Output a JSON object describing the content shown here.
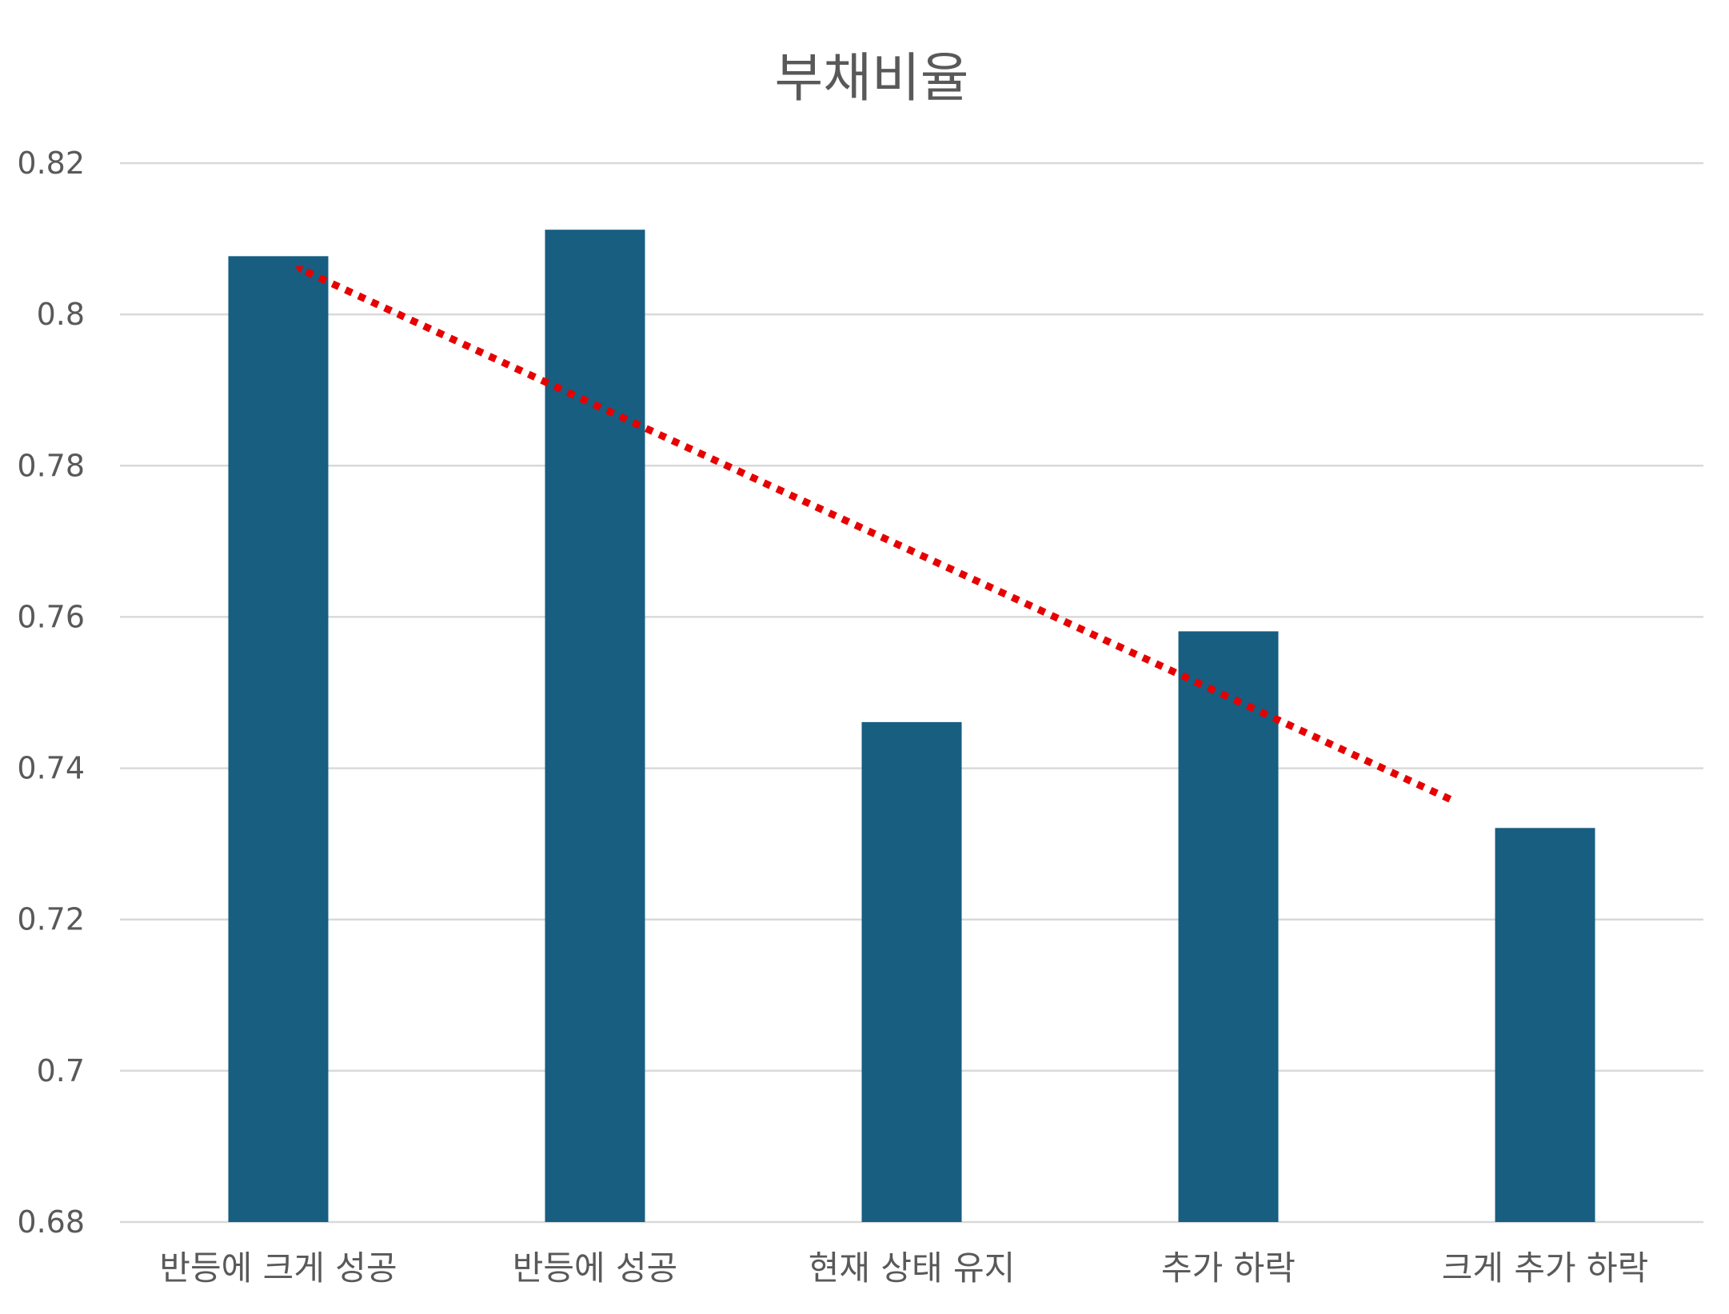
{
  "chart_data": {
    "type": "bar",
    "title": "부채비율",
    "xlabel": "",
    "ylabel": "",
    "categories": [
      "반등에 크게 성공",
      "반등에 성공",
      "현재 상태 유지",
      "추가 하락",
      "크게 추가 하락"
    ],
    "series": [
      {
        "values": [
          0.8077,
          0.8112,
          0.7461,
          0.7581,
          0.7321
        ]
      }
    ],
    "ylim": [
      0.68,
      0.82
    ],
    "y_ticks": [
      "0.68",
      "0.7",
      "0.72",
      "0.74",
      "0.76",
      "0.78",
      "0.8",
      "0.82"
    ],
    "grid": true,
    "legend": "none",
    "bar_color": "#175e81",
    "annotations": [
      {
        "type": "dotted-arrow",
        "color": "#e60000",
        "from": {
          "category_index": 4.2,
          "y": 0.7359
        },
        "to": {
          "category_index": 0.57,
          "y": 0.806
        }
      }
    ]
  }
}
